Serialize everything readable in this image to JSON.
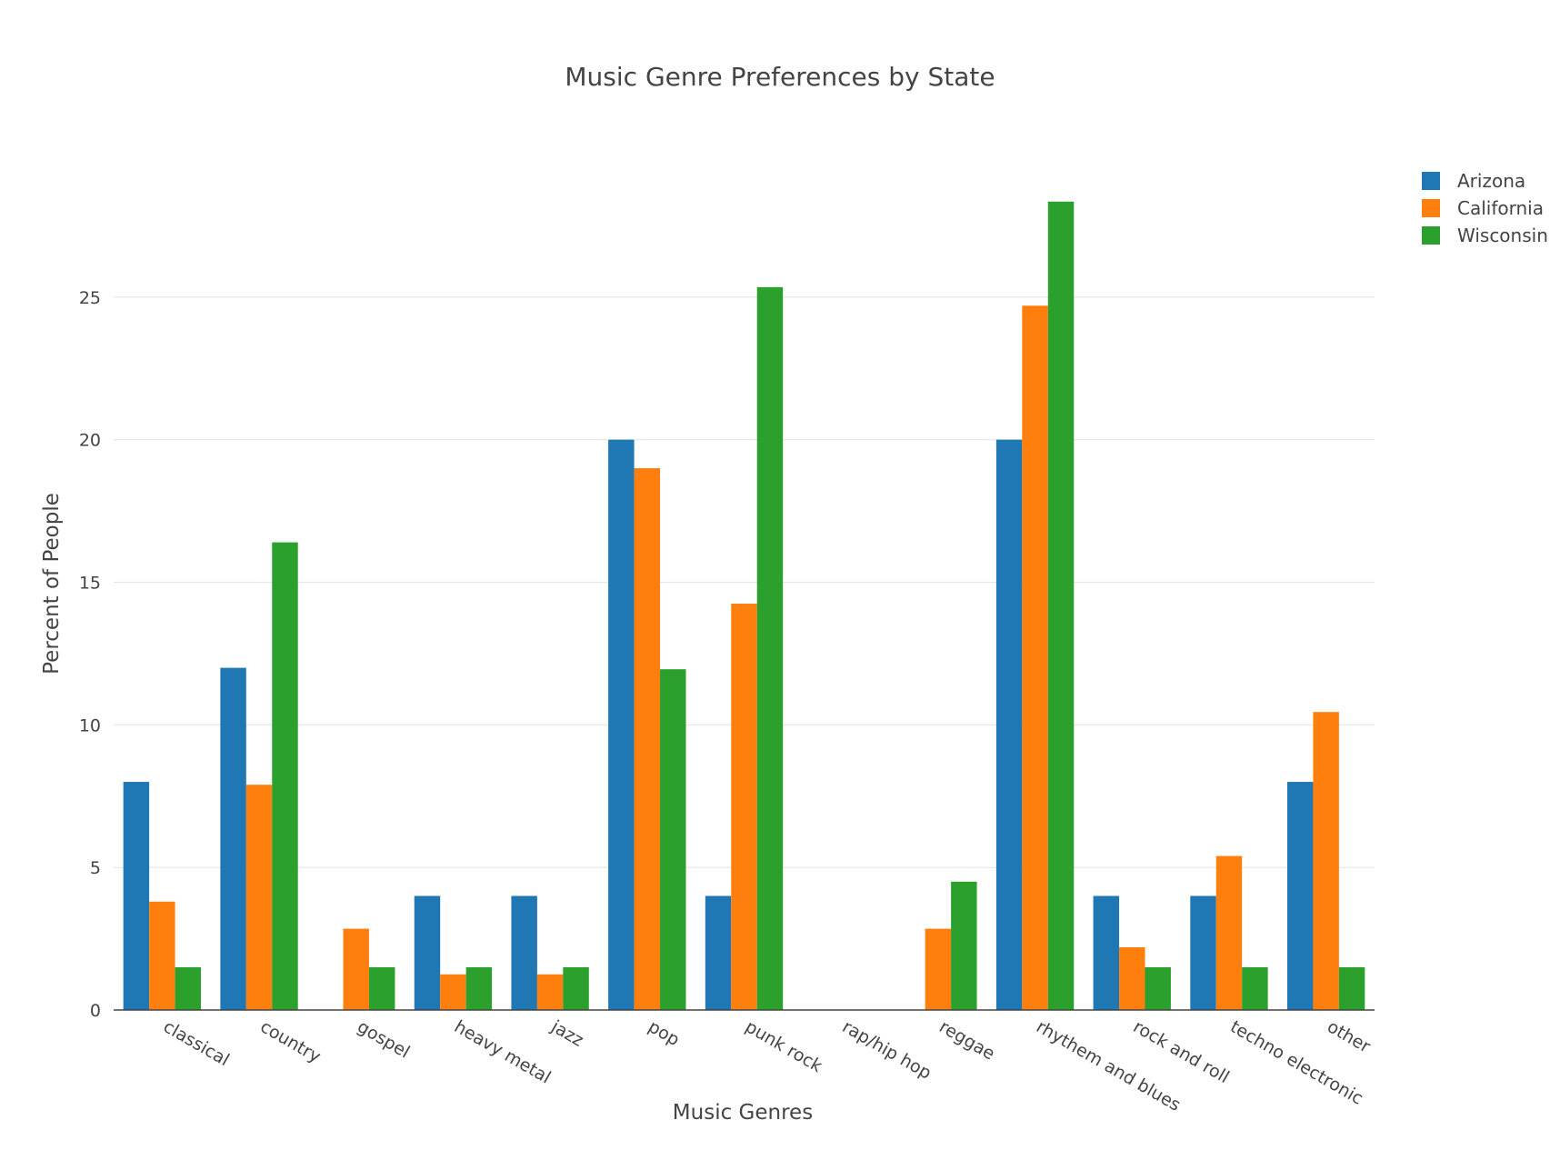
{
  "chart_data": {
    "type": "bar",
    "title": "Music Genre Preferences by State",
    "xlabel": "Music Genres",
    "ylabel": "Percent of People",
    "ylim": [
      0,
      30
    ],
    "yticks": [
      0,
      5,
      10,
      15,
      20,
      25
    ],
    "grid": true,
    "legend_position": "top-right",
    "categories": [
      "classical",
      "country",
      "gospel",
      "heavy metal",
      "jazz",
      "pop",
      "punk rock",
      "rap/hip hop",
      "reggae",
      "rhythem and blues",
      "rock and roll",
      "techno electronic",
      "other"
    ],
    "series": [
      {
        "name": "Arizona",
        "color": "#1f77b4",
        "values": [
          8,
          12,
          0,
          4,
          4,
          20,
          4,
          0,
          0,
          20,
          4,
          4,
          8
        ]
      },
      {
        "name": "California",
        "color": "#ff7f0e",
        "values": [
          3.8,
          7.9,
          2.85,
          1.25,
          1.25,
          19,
          14.25,
          0,
          2.85,
          24.7,
          2.2,
          5.4,
          10.45
        ]
      },
      {
        "name": "Wisconsin",
        "color": "#2ca02c",
        "values": [
          1.5,
          16.4,
          1.5,
          1.5,
          1.5,
          11.95,
          25.35,
          0,
          4.5,
          28.35,
          1.5,
          1.5,
          1.5
        ]
      }
    ]
  }
}
